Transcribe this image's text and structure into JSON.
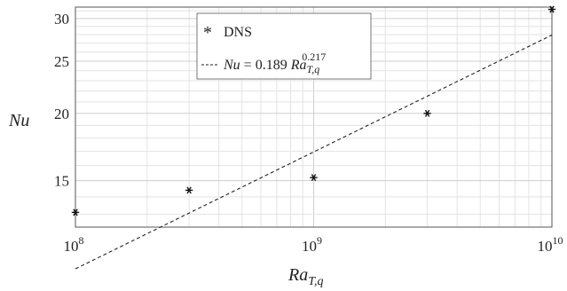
{
  "chart_data": {
    "type": "scatter",
    "x_scale": "log",
    "y_scale": "log",
    "xlim": [
      100000000.0,
      10000000000.0
    ],
    "ylim": [
      12.3,
      31.5
    ],
    "grid": true,
    "xlabel": {
      "base": "Ra",
      "sub": "T,q"
    },
    "ylabel": "Nu",
    "x_ticks": [
      {
        "value": 100000000.0,
        "base": "10",
        "exp": "8"
      },
      {
        "value": 1000000000.0,
        "base": "10",
        "exp": "9"
      },
      {
        "value": 10000000000.0,
        "base": "10",
        "exp": "10"
      }
    ],
    "y_ticks": [
      {
        "value": 15,
        "label": "15"
      },
      {
        "value": 20,
        "label": "20"
      },
      {
        "value": 25,
        "label": "25"
      },
      {
        "value": 30,
        "label": "30"
      }
    ],
    "series": [
      {
        "name": "DNS",
        "kind": "markers",
        "marker": "*",
        "x": [
          100000000.0,
          300000000.0,
          1000000000.0,
          3000000000.0,
          10000000000.0
        ],
        "y": [
          13.1,
          14.4,
          15.2,
          20.0,
          31.2
        ]
      },
      {
        "name": "Nu = 0.189 Ra_{T,q}^{0.217}",
        "kind": "fit-line",
        "style": "dashed",
        "coefficient": 0.189,
        "exponent": 0.217
      }
    ],
    "legend": {
      "position": "top-center",
      "entries": [
        {
          "symbol": "*",
          "text": "DNS"
        },
        {
          "symbol": "----",
          "lhs": "Nu",
          "eq": " = 0.189 ",
          "var": "Ra",
          "sub": "T,q",
          "sup": "0.217"
        }
      ]
    },
    "colors": {
      "marker": "#111111",
      "line": "#222222",
      "grid": "#e3e3e3",
      "axis": "#555555"
    }
  }
}
